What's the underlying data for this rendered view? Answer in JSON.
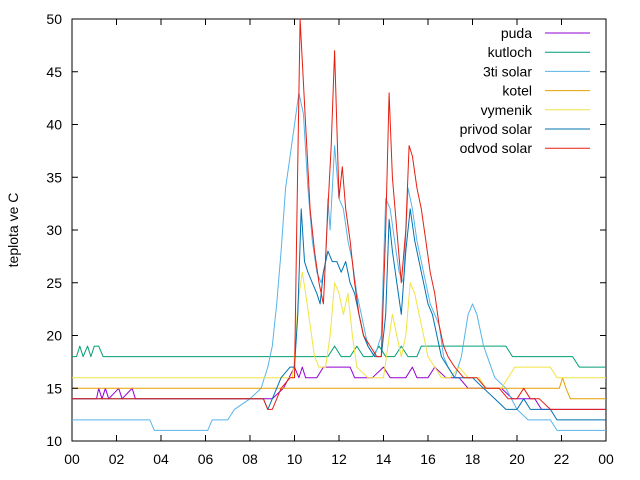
{
  "chart_data": {
    "type": "line",
    "ylabel": "teplota ve C",
    "ylim": [
      10,
      50
    ],
    "xlim": [
      0,
      24
    ],
    "xticks": [
      "00",
      "02",
      "04",
      "06",
      "08",
      "10",
      "12",
      "14",
      "16",
      "18",
      "20",
      "22",
      "00"
    ],
    "yticks": [
      "10",
      "15",
      "20",
      "25",
      "30",
      "35",
      "40",
      "45",
      "50"
    ],
    "legend_position": "top-right",
    "grid": false,
    "series": [
      {
        "name": "puda",
        "color": "#9400d3",
        "points": [
          [
            0,
            14
          ],
          [
            1.1,
            14
          ],
          [
            1.2,
            15
          ],
          [
            1.35,
            14
          ],
          [
            1.5,
            15
          ],
          [
            1.65,
            14
          ],
          [
            2.1,
            15
          ],
          [
            2.25,
            14
          ],
          [
            2.7,
            15
          ],
          [
            2.85,
            14
          ],
          [
            9,
            14
          ],
          [
            9.5,
            15
          ],
          [
            10,
            17
          ],
          [
            10.2,
            16
          ],
          [
            10.35,
            17
          ],
          [
            10.5,
            16
          ],
          [
            11,
            16
          ],
          [
            11.3,
            17
          ],
          [
            12.5,
            17
          ],
          [
            12.7,
            16
          ],
          [
            13.5,
            16
          ],
          [
            14,
            17
          ],
          [
            14.3,
            16
          ],
          [
            15,
            16
          ],
          [
            15.3,
            17
          ],
          [
            15.5,
            16
          ],
          [
            16,
            16
          ],
          [
            16.3,
            17
          ],
          [
            16.8,
            16
          ],
          [
            17.4,
            16
          ],
          [
            17.8,
            15
          ],
          [
            19.3,
            15
          ],
          [
            19.8,
            14
          ],
          [
            20.8,
            14
          ],
          [
            21.1,
            13
          ],
          [
            24,
            13
          ]
        ]
      },
      {
        "name": "kutloch",
        "color": "#009e73",
        "points": [
          [
            0,
            18
          ],
          [
            0.2,
            18
          ],
          [
            0.35,
            19
          ],
          [
            0.5,
            18
          ],
          [
            0.7,
            19
          ],
          [
            0.85,
            18
          ],
          [
            1,
            19
          ],
          [
            1.2,
            19
          ],
          [
            1.4,
            18
          ],
          [
            2.5,
            18
          ],
          [
            9.8,
            18
          ],
          [
            10.2,
            18
          ],
          [
            11.5,
            18
          ],
          [
            11.8,
            19
          ],
          [
            12.1,
            18
          ],
          [
            12.5,
            18
          ],
          [
            12.8,
            19
          ],
          [
            13.1,
            18
          ],
          [
            13.5,
            18
          ],
          [
            13.8,
            19
          ],
          [
            14.1,
            18
          ],
          [
            14.5,
            18
          ],
          [
            14.8,
            19
          ],
          [
            15.1,
            18
          ],
          [
            15.5,
            18
          ],
          [
            15.7,
            19
          ],
          [
            19.5,
            19
          ],
          [
            19.8,
            18
          ],
          [
            22.5,
            18
          ],
          [
            22.8,
            17
          ],
          [
            24,
            17
          ]
        ]
      },
      {
        "name": "3ti solar",
        "color": "#56b4e9",
        "points": [
          [
            0,
            12
          ],
          [
            3.5,
            12
          ],
          [
            3.7,
            11
          ],
          [
            6.1,
            11
          ],
          [
            6.3,
            12
          ],
          [
            7,
            12
          ],
          [
            7.3,
            13
          ],
          [
            8,
            14
          ],
          [
            8.5,
            15
          ],
          [
            8.8,
            17
          ],
          [
            9,
            19
          ],
          [
            9.2,
            23
          ],
          [
            9.4,
            28
          ],
          [
            9.6,
            34
          ],
          [
            9.8,
            37
          ],
          [
            10,
            40
          ],
          [
            10.2,
            43
          ],
          [
            10.4,
            41
          ],
          [
            10.6,
            34
          ],
          [
            10.8,
            29
          ],
          [
            11,
            26
          ],
          [
            11.2,
            25
          ],
          [
            11.4,
            27
          ],
          [
            11.5,
            33
          ],
          [
            11.6,
            30
          ],
          [
            11.8,
            38
          ],
          [
            12,
            33
          ],
          [
            12.2,
            32
          ],
          [
            12.4,
            29
          ],
          [
            12.6,
            27
          ],
          [
            12.8,
            24
          ],
          [
            13,
            22
          ],
          [
            13.3,
            19
          ],
          [
            13.6,
            18
          ],
          [
            13.9,
            20
          ],
          [
            14.1,
            33
          ],
          [
            14.3,
            32
          ],
          [
            14.5,
            29
          ],
          [
            14.7,
            26
          ],
          [
            14.9,
            25
          ],
          [
            15.1,
            34
          ],
          [
            15.3,
            32
          ],
          [
            15.5,
            29
          ],
          [
            15.7,
            27
          ],
          [
            15.9,
            25
          ],
          [
            16.1,
            23
          ],
          [
            16.3,
            22
          ],
          [
            16.5,
            21
          ],
          [
            16.7,
            18
          ],
          [
            16.9,
            17
          ],
          [
            17.2,
            16
          ],
          [
            17.5,
            18
          ],
          [
            17.8,
            22
          ],
          [
            18,
            23
          ],
          [
            18.2,
            22
          ],
          [
            18.5,
            19
          ],
          [
            19,
            16
          ],
          [
            19.5,
            15
          ],
          [
            20,
            13
          ],
          [
            20.5,
            12
          ],
          [
            21.5,
            12
          ],
          [
            21.8,
            11
          ],
          [
            24,
            11
          ]
        ]
      },
      {
        "name": "kotel",
        "color": "#e69f00",
        "points": [
          [
            0,
            15
          ],
          [
            21.9,
            15
          ],
          [
            22.05,
            16
          ],
          [
            22.2,
            15
          ],
          [
            22.4,
            14
          ],
          [
            24,
            14
          ]
        ]
      },
      {
        "name": "vymenik",
        "color": "#f0e442",
        "points": [
          [
            0,
            16
          ],
          [
            9.9,
            16
          ],
          [
            10,
            18
          ],
          [
            10.15,
            23
          ],
          [
            10.35,
            26
          ],
          [
            10.5,
            24
          ],
          [
            10.7,
            21
          ],
          [
            10.9,
            18
          ],
          [
            11.1,
            17
          ],
          [
            11.4,
            17
          ],
          [
            11.6,
            20
          ],
          [
            11.8,
            25
          ],
          [
            12,
            24
          ],
          [
            12.2,
            22
          ],
          [
            12.4,
            24
          ],
          [
            12.6,
            20
          ],
          [
            12.8,
            17
          ],
          [
            13.3,
            16
          ],
          [
            14,
            16
          ],
          [
            14.2,
            19
          ],
          [
            14.4,
            22
          ],
          [
            14.6,
            20
          ],
          [
            14.8,
            18
          ],
          [
            15,
            20
          ],
          [
            15.2,
            25
          ],
          [
            15.4,
            24
          ],
          [
            15.6,
            22
          ],
          [
            15.8,
            20
          ],
          [
            16,
            18
          ],
          [
            16.3,
            17
          ],
          [
            16.6,
            16
          ],
          [
            17,
            16
          ],
          [
            17.4,
            17
          ],
          [
            17.8,
            16
          ],
          [
            18.3,
            16
          ],
          [
            18.6,
            15
          ],
          [
            19.3,
            15
          ],
          [
            19.6,
            16
          ],
          [
            19.9,
            17
          ],
          [
            21.5,
            17
          ],
          [
            21.8,
            16
          ],
          [
            24,
            16
          ]
        ]
      },
      {
        "name": "privod solar",
        "color": "#0072b2",
        "points": [
          [
            0,
            14
          ],
          [
            8.6,
            14
          ],
          [
            8.8,
            13
          ],
          [
            9,
            14
          ],
          [
            9.4,
            16
          ],
          [
            9.8,
            17
          ],
          [
            10,
            17
          ],
          [
            10.15,
            22
          ],
          [
            10.3,
            32
          ],
          [
            10.45,
            27
          ],
          [
            10.6,
            26
          ],
          [
            10.8,
            25
          ],
          [
            11,
            24
          ],
          [
            11.15,
            23
          ],
          [
            11.3,
            26
          ],
          [
            11.5,
            28
          ],
          [
            11.7,
            27
          ],
          [
            11.9,
            27
          ],
          [
            12.1,
            26
          ],
          [
            12.3,
            27
          ],
          [
            12.5,
            25
          ],
          [
            12.7,
            24
          ],
          [
            12.9,
            22
          ],
          [
            13.1,
            20
          ],
          [
            13.3,
            19
          ],
          [
            13.6,
            18
          ],
          [
            13.9,
            18
          ],
          [
            14.1,
            22
          ],
          [
            14.25,
            31
          ],
          [
            14.4,
            28
          ],
          [
            14.6,
            25
          ],
          [
            14.8,
            22
          ],
          [
            15,
            28
          ],
          [
            15.2,
            32
          ],
          [
            15.4,
            29
          ],
          [
            15.6,
            27
          ],
          [
            15.8,
            25
          ],
          [
            16,
            23
          ],
          [
            16.2,
            22
          ],
          [
            16.4,
            20
          ],
          [
            16.6,
            18
          ],
          [
            16.9,
            17
          ],
          [
            17.2,
            16
          ],
          [
            17.6,
            16
          ],
          [
            18,
            16
          ],
          [
            18.5,
            15
          ],
          [
            19,
            14
          ],
          [
            19.5,
            13
          ],
          [
            20,
            13
          ],
          [
            20.3,
            14
          ],
          [
            20.6,
            13
          ],
          [
            21.5,
            13
          ],
          [
            21.8,
            12
          ],
          [
            24,
            12
          ]
        ]
      },
      {
        "name": "odvod solar",
        "color": "#e51e10",
        "points": [
          [
            0,
            14
          ],
          [
            8.6,
            14
          ],
          [
            8.8,
            13
          ],
          [
            9,
            13
          ],
          [
            9.4,
            15
          ],
          [
            9.8,
            16
          ],
          [
            10,
            16
          ],
          [
            10.1,
            30
          ],
          [
            10.25,
            50
          ],
          [
            10.35,
            46
          ],
          [
            10.5,
            40
          ],
          [
            10.7,
            32
          ],
          [
            10.9,
            28
          ],
          [
            11.1,
            25
          ],
          [
            11.3,
            23
          ],
          [
            11.5,
            32
          ],
          [
            11.65,
            38
          ],
          [
            11.8,
            47
          ],
          [
            11.9,
            40
          ],
          [
            12,
            33
          ],
          [
            12.15,
            36
          ],
          [
            12.3,
            32
          ],
          [
            12.5,
            29
          ],
          [
            12.7,
            25
          ],
          [
            12.9,
            22
          ],
          [
            13.1,
            20
          ],
          [
            13.4,
            19
          ],
          [
            13.7,
            18
          ],
          [
            13.9,
            18
          ],
          [
            14.1,
            30
          ],
          [
            14.25,
            43
          ],
          [
            14.4,
            35
          ],
          [
            14.6,
            30
          ],
          [
            14.8,
            25
          ],
          [
            15,
            30
          ],
          [
            15.15,
            38
          ],
          [
            15.3,
            37
          ],
          [
            15.5,
            34
          ],
          [
            15.7,
            32
          ],
          [
            15.9,
            29
          ],
          [
            16.1,
            26
          ],
          [
            16.3,
            24
          ],
          [
            16.5,
            21
          ],
          [
            16.7,
            19
          ],
          [
            16.9,
            18
          ],
          [
            17.2,
            17
          ],
          [
            17.6,
            16
          ],
          [
            18.2,
            16
          ],
          [
            18.6,
            15
          ],
          [
            19.2,
            15
          ],
          [
            19.6,
            14
          ],
          [
            20,
            14
          ],
          [
            20.3,
            15
          ],
          [
            20.6,
            14
          ],
          [
            21,
            14
          ],
          [
            21.5,
            13
          ],
          [
            24,
            13
          ]
        ]
      }
    ]
  }
}
